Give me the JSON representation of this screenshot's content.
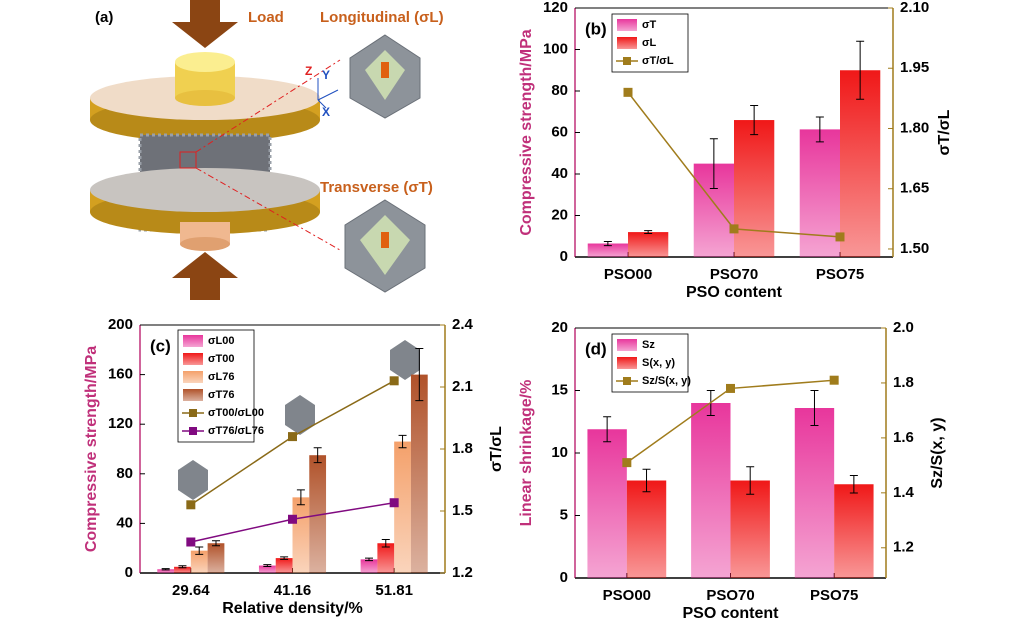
{
  "figure": {
    "panel_a": {
      "label": "(a)",
      "load": "Load",
      "longitudinal": "Longitudinal (σL)",
      "transverse": "Transverse (σT)",
      "axes": [
        "Z",
        "Y",
        "X"
      ]
    }
  },
  "chart_data": [
    {
      "type": "bar",
      "panel": "(b)",
      "categories": [
        "PSO00",
        "PSO70",
        "PSO75"
      ],
      "x_label": "PSO content",
      "y_label": "Compressive strength/MPa",
      "y2_label": "σT/σL",
      "ylim": [
        0,
        120
      ],
      "yticks": [
        0,
        20,
        40,
        60,
        80,
        100,
        120
      ],
      "y2lim": [
        1.48,
        2.1
      ],
      "y2ticks": [
        {
          "value": 1.5,
          "label": "1.50"
        },
        {
          "value": 1.65,
          "label": "1.65"
        },
        {
          "value": 1.8,
          "label": "1.80"
        },
        {
          "value": 1.95,
          "label": "1.95"
        },
        {
          "value": 2.1,
          "label": "2.10"
        }
      ],
      "legend": "upper left",
      "series": [
        {
          "name": "σT",
          "color": "#e8369c",
          "values": [
            6.5,
            45,
            61.5
          ],
          "errors": [
            1,
            12,
            6
          ]
        },
        {
          "name": "σL",
          "color": "#f01818",
          "values": [
            12,
            66,
            90
          ],
          "errors": [
            0.7,
            7,
            14
          ]
        },
        {
          "name": "σT/σL",
          "color": "#a07c1c",
          "axis": "y2",
          "values": [
            1.89,
            1.55,
            1.53
          ]
        }
      ]
    },
    {
      "type": "bar",
      "panel": "(c)",
      "categories": [
        "29.64",
        "41.16",
        "51.81"
      ],
      "x_label": "Relative density/%",
      "y_label": "Compressive strength/MPa",
      "y2_label": "σT/σL",
      "ylim": [
        0,
        200
      ],
      "yticks": [
        0,
        40,
        80,
        120,
        160,
        200
      ],
      "y2lim": [
        1.2,
        2.4
      ],
      "y2ticks": [
        1.2,
        1.5,
        1.8,
        2.1,
        2.4
      ],
      "legend": "upper left",
      "series": [
        {
          "name": "σL00",
          "color": "#e8369c",
          "values": [
            3,
            6,
            11
          ],
          "errors": [
            0.5,
            0.8,
            1
          ]
        },
        {
          "name": "σT00",
          "color": "#f01818",
          "values": [
            5,
            12,
            24
          ],
          "errors": [
            0.8,
            1,
            3
          ]
        },
        {
          "name": "σL76",
          "color": "#f4a06a",
          "values": [
            18,
            61,
            106
          ],
          "errors": [
            3,
            6,
            5
          ]
        },
        {
          "name": "σT76",
          "color": "#b0522a",
          "values": [
            24,
            95,
            160
          ],
          "errors": [
            2,
            6,
            21
          ]
        },
        {
          "name": "σT00/σL00",
          "color": "#8a6a18",
          "axis": "y2",
          "values": [
            1.53,
            1.86,
            2.13
          ]
        },
        {
          "name": "σT76/σL76",
          "color": "#800a80",
          "axis": "y2",
          "values": [
            1.35,
            1.46,
            1.54
          ]
        }
      ]
    },
    {
      "type": "bar",
      "panel": "(d)",
      "categories": [
        "PSO00",
        "PSO70",
        "PSO75"
      ],
      "x_label": "PSO content",
      "y_label": "Linear shrinkage/%",
      "y2_label": "Sz/S(x, y)",
      "ylim": [
        0,
        20
      ],
      "yticks": [
        0,
        5,
        10,
        15,
        20
      ],
      "y2lim": [
        1.09,
        2.0
      ],
      "y2ticks": [
        1.2,
        1.4,
        1.6,
        1.8,
        {
          "value": 2.0,
          "label": "2.0"
        }
      ],
      "legend": "upper left",
      "series": [
        {
          "name": "Sz",
          "color": "#e8369c",
          "values": [
            11.9,
            14,
            13.6
          ],
          "errors": [
            1,
            1,
            1.4
          ]
        },
        {
          "name": "S(x, y)",
          "color": "#f01818",
          "values": [
            7.8,
            7.8,
            7.5
          ],
          "errors": [
            0.9,
            1.1,
            0.7
          ]
        },
        {
          "name": "Sz/S(x, y)",
          "color": "#a07c1c",
          "axis": "y2",
          "values": [
            1.51,
            1.78,
            1.81
          ]
        }
      ]
    }
  ]
}
